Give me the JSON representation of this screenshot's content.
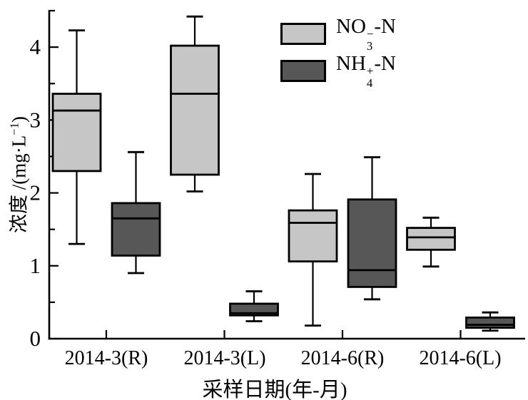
{
  "figure": {
    "y_axis": {
      "label_prefix": "浓度 /(mg·L",
      "label_sup": "−1",
      "label_suffix": ")"
    },
    "legend": [
      {
        "base": "NO",
        "sup": "−",
        "sub": "3",
        "suffix": "-N"
      },
      {
        "base": "NH",
        "sup": "+",
        "sub": "4",
        "suffix": "-N"
      }
    ]
  },
  "chart_data": {
    "type": "boxplot",
    "title": "",
    "xlabel": "采样日期(年-月)",
    "ylabel": "浓度/(mg·L−1)",
    "categories": [
      "2014-3(R)",
      "2014-3(L)",
      "2014-6(R)",
      "2014-6(L)"
    ],
    "ylim": [
      0,
      4.5
    ],
    "yticks_major": [
      0,
      1,
      2,
      3,
      4
    ],
    "yticks_minor": [
      0.5,
      1.5,
      2.5,
      3.5,
      4.5
    ],
    "grid": false,
    "legend_position": "upper-center",
    "axis_style": "left-bottom-spines-only",
    "series": [
      {
        "name": "NO3−-N",
        "color": "#c6c6c6",
        "boxes": [
          {
            "category": "2014-3(R)",
            "whisker_low": 1.3,
            "q1": 2.3,
            "median": 3.13,
            "q3": 3.36,
            "whisker_high": 4.23
          },
          {
            "category": "2014-3(L)",
            "whisker_low": 2.02,
            "q1": 2.25,
            "median": 3.36,
            "q3": 4.02,
            "whisker_high": 4.42
          },
          {
            "category": "2014-6(R)",
            "whisker_low": 0.18,
            "q1": 1.06,
            "median": 1.59,
            "q3": 1.76,
            "whisker_high": 2.26
          },
          {
            "category": "2014-6(L)",
            "whisker_low": 0.99,
            "q1": 1.22,
            "median": 1.39,
            "q3": 1.52,
            "whisker_high": 1.66
          }
        ]
      },
      {
        "name": "NH4+-N",
        "color": "#575757",
        "boxes": [
          {
            "category": "2014-3(R)",
            "whisker_low": 0.9,
            "q1": 1.14,
            "median": 1.65,
            "q3": 1.86,
            "whisker_high": 2.56
          },
          {
            "category": "2014-3(L)",
            "whisker_low": 0.24,
            "q1": 0.32,
            "median": 0.35,
            "q3": 0.48,
            "whisker_high": 0.65
          },
          {
            "category": "2014-6(R)",
            "whisker_low": 0.54,
            "q1": 0.71,
            "median": 0.94,
            "q3": 1.91,
            "whisker_high": 2.49
          },
          {
            "category": "2014-6(L)",
            "whisker_low": 0.11,
            "q1": 0.15,
            "median": 0.19,
            "q3": 0.29,
            "whisker_high": 0.36
          }
        ]
      }
    ]
  }
}
